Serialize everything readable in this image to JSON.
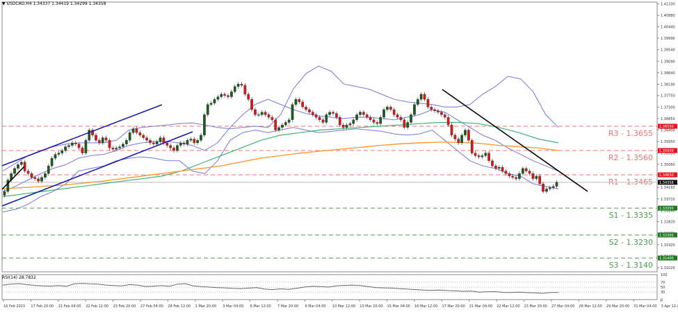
{
  "header": {
    "symbol": "USDCAD,H4",
    "ohlc": "1.34337 1.34419 1.34299 1.34358",
    "title_full": "USDCAD,H4  1.34337 1.34419 1.34299 1.34358"
  },
  "rsi_panel": {
    "label": "RSI(14) 28.7832"
  },
  "colors": {
    "bull": "#1e5a1e",
    "bear": "#d11b1b",
    "bollinger": "#7777dd",
    "ma_green": "#3cb371",
    "ma_orange": "#ff9933",
    "channel": "#1a1aaa",
    "trendline": "#000000",
    "resistance": "#f07070",
    "support": "#4a9a4a",
    "current_line": "#c8c8c8",
    "rsi_line": "#666666",
    "axis": "#888888"
  },
  "chart_data": {
    "type": "candlestick",
    "title": "USDCAD,H4",
    "y_axis_ticks": [
      "1.41330",
      "1.40880",
      "1.40440",
      "1.39990",
      "1.39540",
      "1.39090",
      "1.38640",
      "1.38190",
      "1.37750",
      "1.37300",
      "1.36850",
      "1.36400",
      "1.35950",
      "1.35510",
      "1.35060",
      "1.34160",
      "1.33710",
      "1.33260",
      "1.32820",
      "1.32370",
      "1.31920",
      "1.31470",
      "1.31020"
    ],
    "y_range": [
      1.3086,
      1.414
    ],
    "current_price": {
      "label": "1.34358",
      "value": 1.34358
    },
    "x_axis_ticks": [
      "16 Feb 2023",
      "17 Feb 20:00",
      "21 Feb 04:00",
      "22 Feb 12:00",
      "23 Feb 20:00",
      "27 Feb 04:00",
      "28 Feb 12:00",
      "1 Mar 20:00",
      "3 Mar 04:00",
      "6 Mar 12:00",
      "7 Mar 20:00",
      "9 Mar 04:00",
      "10 Mar 12:00",
      "13 Mar 20:00",
      "15 Mar 04:00",
      "16 Mar 12:00",
      "17 Mar 20:00",
      "21 Mar 04:00",
      "22 Mar 12:00",
      "23 Mar 20:00",
      "27 Mar 04:00",
      "28 Mar 12:00",
      "29 Mar 20:00",
      "31 Mar 04:00",
      "3 Apr 12:00"
    ],
    "levels": [
      {
        "name": "R3",
        "label": "R3 - 1.3655",
        "value": 1.3655,
        "tag": "1.36550",
        "kind": "resistance"
      },
      {
        "name": "R2",
        "label": "R2 - 1.3560",
        "value": 1.356,
        "tag": "1.35600",
        "kind": "resistance"
      },
      {
        "name": "R1",
        "label": "R1 - 1.3465",
        "value": 1.3465,
        "tag": "1.34650",
        "kind": "resistance"
      },
      {
        "name": "S1",
        "label": "S1 - 1.3335",
        "value": 1.3335,
        "tag": "1.33350",
        "kind": "support"
      },
      {
        "name": "S2",
        "label": "S2 - 1.3230",
        "value": 1.323,
        "tag": "1.32300",
        "kind": "support"
      },
      {
        "name": "S3",
        "label": "S3 - 1.3140",
        "value": 1.314,
        "tag": "1.31400",
        "kind": "support"
      }
    ],
    "closes": [
      1.34,
      1.3445,
      1.347,
      1.349,
      1.3505,
      1.3515,
      1.348,
      1.347,
      1.3455,
      1.345,
      1.344,
      1.3455,
      1.347,
      1.35,
      1.353,
      1.3545,
      1.355,
      1.356,
      1.3575,
      1.358,
      1.359,
      1.3585,
      1.357,
      1.355,
      1.36,
      1.364,
      1.362,
      1.36,
      1.359,
      1.361,
      1.36,
      1.357,
      1.3565,
      1.357,
      1.3575,
      1.3585,
      1.36,
      1.363,
      1.3645,
      1.363,
      1.362,
      1.361,
      1.36,
      1.359,
      1.3585,
      1.3595,
      1.361,
      1.359,
      1.358,
      1.357,
      1.356,
      1.358,
      1.359,
      1.3585,
      1.36,
      1.3605,
      1.359,
      1.36,
      1.362,
      1.37,
      1.374,
      1.3745,
      1.376,
      1.377,
      1.378,
      1.3775,
      1.377,
      1.379,
      1.381,
      1.382,
      1.3815,
      1.378,
      1.376,
      1.372,
      1.37,
      1.37,
      1.371,
      1.37,
      1.369,
      1.368,
      1.364,
      1.365,
      1.366,
      1.367,
      1.368,
      1.374,
      1.376,
      1.375,
      1.373,
      1.372,
      1.371,
      1.37,
      1.369,
      1.368,
      1.367,
      1.37,
      1.371,
      1.3705,
      1.369,
      1.366,
      1.365,
      1.366,
      1.3665,
      1.368,
      1.37,
      1.371,
      1.37,
      1.369,
      1.368,
      1.367,
      1.3665,
      1.369,
      1.372,
      1.373,
      1.372,
      1.37,
      1.369,
      1.368,
      1.365,
      1.367,
      1.37,
      1.374,
      1.376,
      1.378,
      1.376,
      1.373,
      1.372,
      1.3715,
      1.371,
      1.37,
      1.369,
      1.366,
      1.362,
      1.3605,
      1.359,
      1.362,
      1.364,
      1.36,
      1.355,
      1.354,
      1.3535,
      1.354,
      1.355,
      1.352,
      1.35,
      1.349,
      1.3495,
      1.348,
      1.347,
      1.346,
      1.3455,
      1.345,
      1.347,
      1.349,
      1.348,
      1.347,
      1.345,
      1.346,
      1.343,
      1.34,
      1.341,
      1.3415,
      1.342,
      1.3436
    ],
    "bb_upper": [
      1.348,
      1.351,
      1.354,
      1.356,
      1.3575,
      1.3585,
      1.359,
      1.359,
      1.359,
      1.36,
      1.364,
      1.365,
      1.3655,
      1.366,
      1.3665,
      1.3668,
      1.366,
      1.365,
      1.3645,
      1.365,
      1.3655,
      1.365,
      1.37,
      1.38,
      1.386,
      1.389,
      1.387,
      1.382,
      1.381,
      1.38,
      1.378,
      1.376,
      1.375,
      1.3745,
      1.374,
      1.373,
      1.373,
      1.374,
      1.378,
      1.381,
      1.385,
      1.384,
      1.379,
      1.37,
      1.365
    ],
    "bb_lower": [
      1.332,
      1.333,
      1.335,
      1.338,
      1.34,
      1.343,
      1.348,
      1.349,
      1.35,
      1.352,
      1.353,
      1.3535,
      1.353,
      1.352,
      1.352,
      1.348,
      1.347,
      1.352,
      1.36,
      1.363,
      1.364,
      1.363,
      1.364,
      1.365,
      1.364,
      1.363,
      1.3635,
      1.364,
      1.3645,
      1.364,
      1.3635,
      1.3625,
      1.362,
      1.3625,
      1.364,
      1.36,
      1.356,
      1.352,
      1.35,
      1.349,
      1.347,
      1.346,
      1.343,
      1.342,
      1.341
    ],
    "bb_mid": [
      1.34,
      1.342,
      1.3445,
      1.347,
      1.349,
      1.3505,
      1.353,
      1.354,
      1.3545,
      1.356,
      1.358,
      1.359,
      1.3595,
      1.3595,
      1.359,
      1.358,
      1.356,
      1.359,
      1.365,
      1.37,
      1.374,
      1.376,
      1.374,
      1.372,
      1.3705,
      1.3695,
      1.369,
      1.3685,
      1.369,
      1.369,
      1.3685,
      1.368,
      1.369,
      1.37,
      1.372,
      1.371,
      1.368,
      1.365,
      1.362,
      1.36,
      1.357,
      1.3545,
      1.352,
      1.35,
      1.348
    ],
    "ma_green": [
      1.338,
      1.339,
      1.34,
      1.341,
      1.342,
      1.343,
      1.344,
      1.345,
      1.346,
      1.348,
      1.351,
      1.354,
      1.357,
      1.36,
      1.362,
      1.363,
      1.364,
      1.3645,
      1.365,
      1.3655,
      1.366,
      1.3665,
      1.367,
      1.367,
      1.3665,
      1.365,
      1.363,
      1.3605,
      1.359
    ],
    "ma_orange": [
      1.341,
      1.3415,
      1.342,
      1.3425,
      1.3432,
      1.344,
      1.345,
      1.346,
      1.347,
      1.348,
      1.349,
      1.35,
      1.3515,
      1.353,
      1.354,
      1.355,
      1.3558,
      1.3565,
      1.3572,
      1.358,
      1.3586,
      1.359,
      1.3593,
      1.3592,
      1.3588,
      1.358,
      1.3575,
      1.357,
      1.356
    ],
    "rsi": {
      "range": [
        0,
        100
      ],
      "levels": [
        70,
        50,
        30
      ],
      "ticks": [
        "100",
        "70",
        "50",
        "30",
        "0"
      ],
      "values": [
        58,
        62,
        64,
        60,
        57,
        55,
        54,
        56,
        53,
        63,
        65,
        63,
        62,
        58,
        56,
        55,
        60,
        58,
        52,
        54,
        56,
        53,
        62,
        64,
        55,
        52,
        50,
        48,
        47,
        45,
        44,
        46,
        48,
        42,
        40,
        43,
        41,
        45,
        50,
        53,
        52,
        50,
        55,
        57,
        58,
        56,
        52,
        48,
        47,
        46,
        44,
        42,
        40,
        38,
        37,
        38,
        36,
        35,
        33,
        34,
        30,
        31,
        32,
        29,
        28,
        30,
        28,
        27,
        25,
        28,
        29
      ]
    }
  }
}
